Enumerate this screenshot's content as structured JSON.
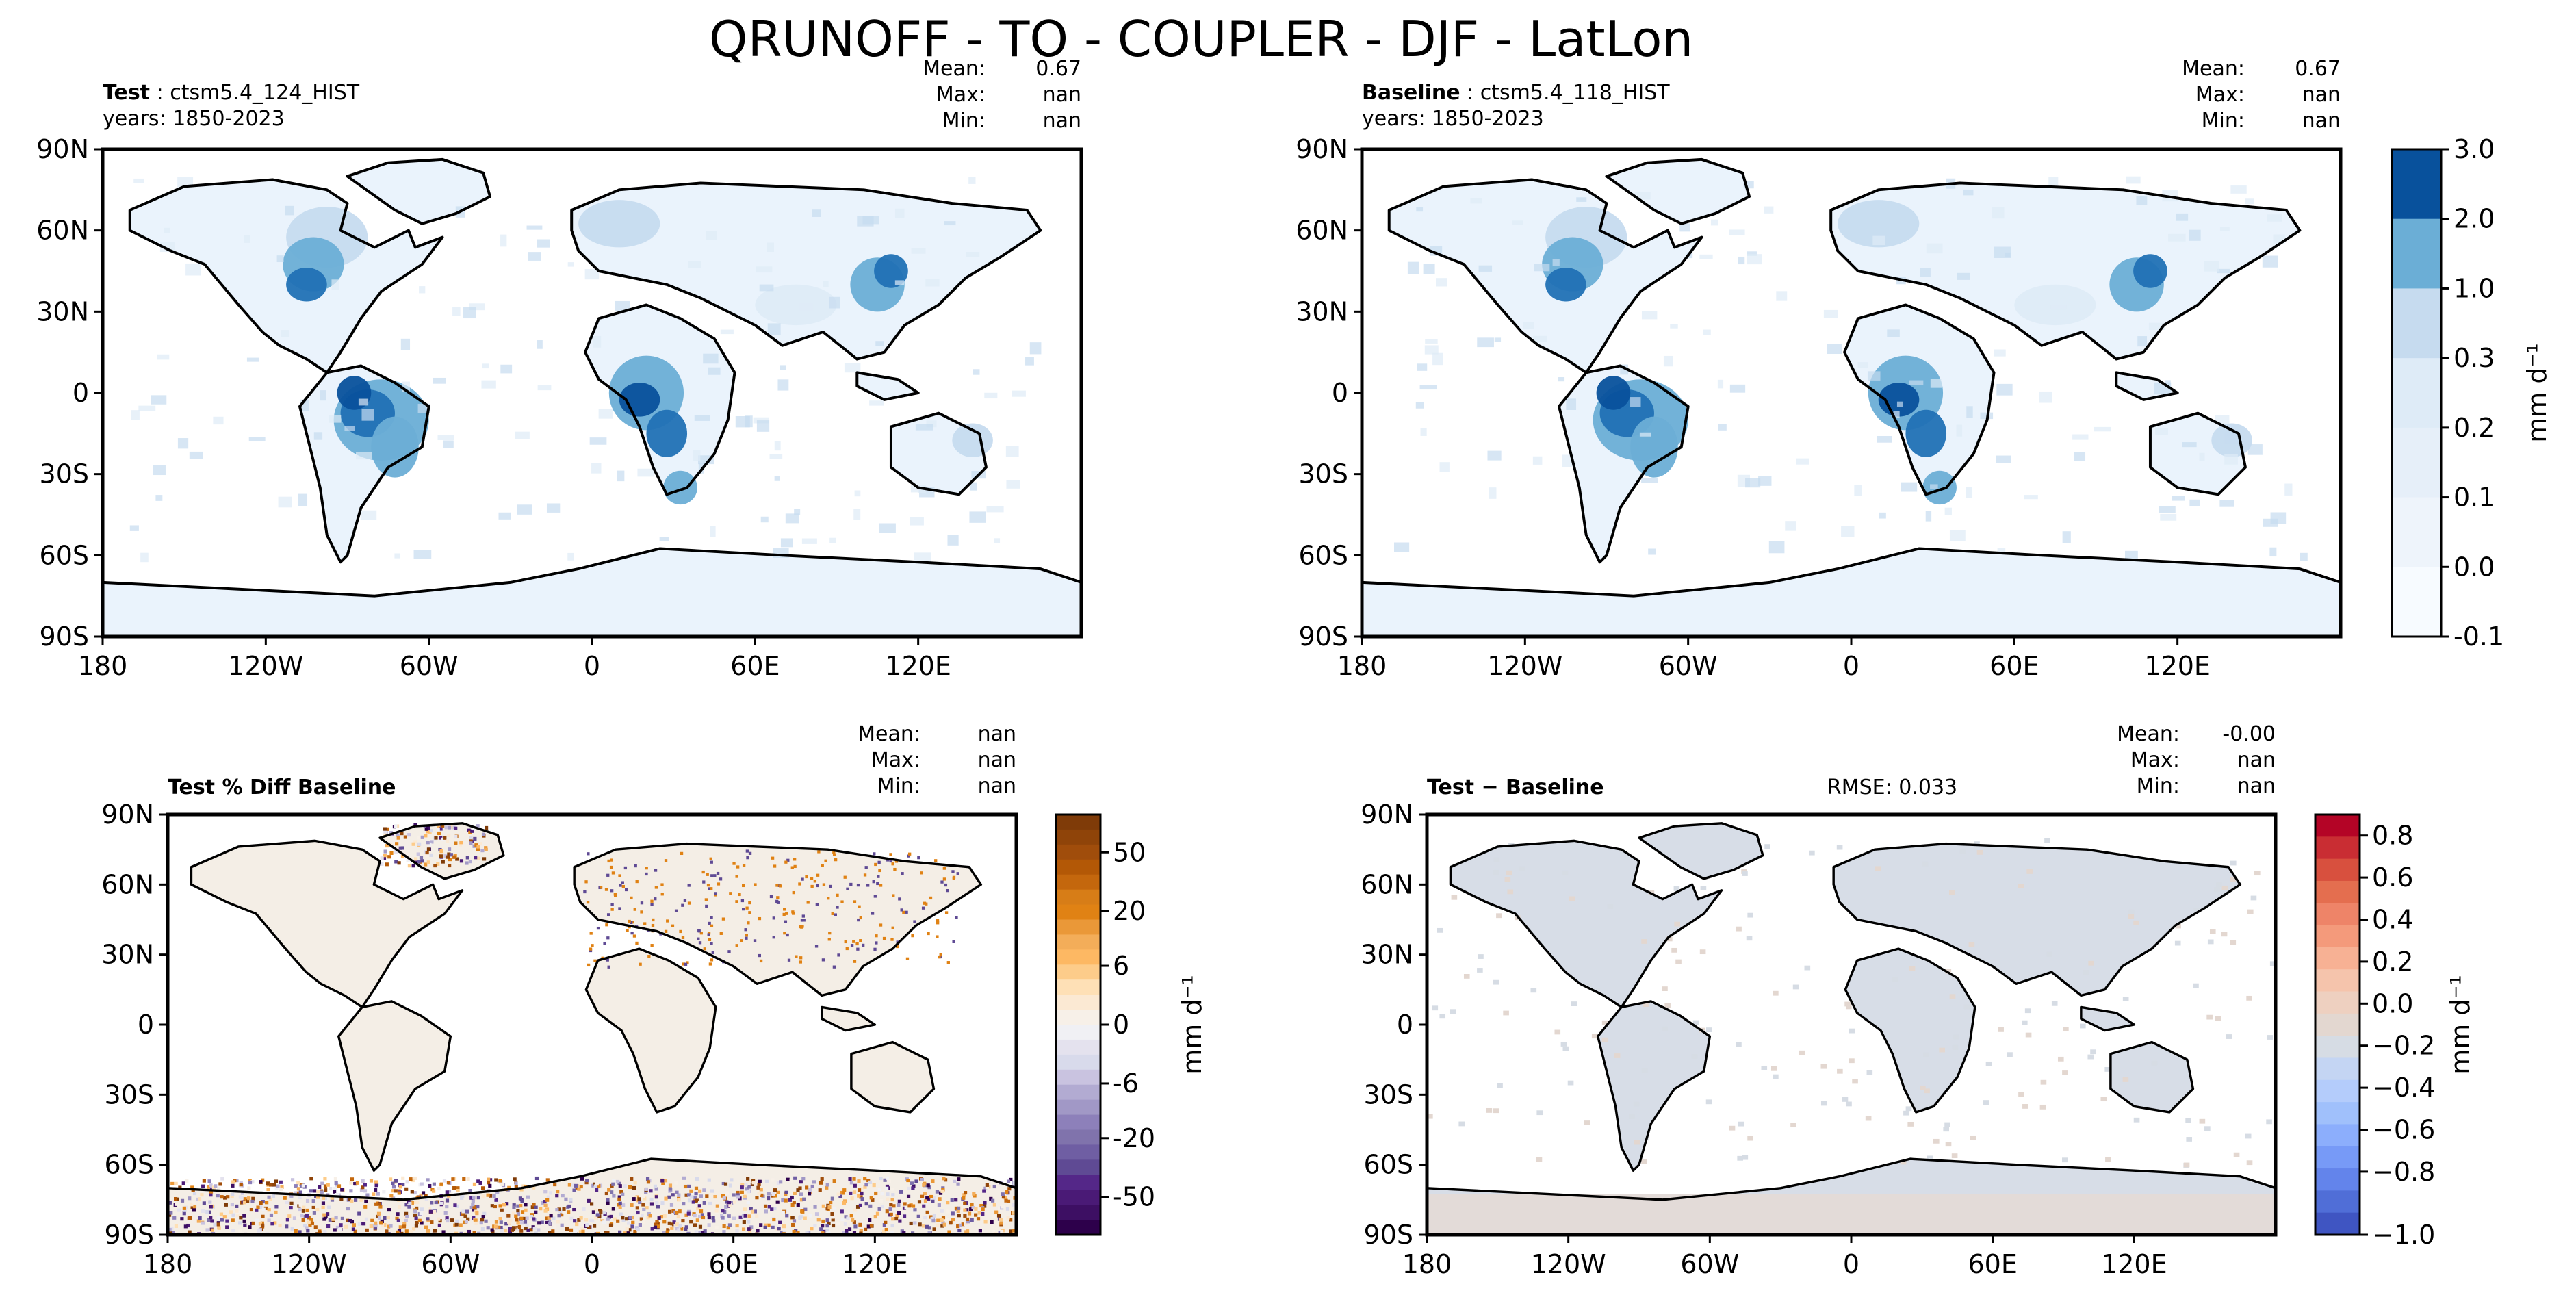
{
  "figure": {
    "title": "QRUNOFF - TO - COUPLER - DJF - LatLon"
  },
  "palettes": {
    "blues": [
      "#f7fbff",
      "#eaf3fc",
      "#deebf7",
      "#c6dbef",
      "#6baed6",
      "#2171b5",
      "#08519c"
    ],
    "diffblues": {
      "land": "#d7dde7",
      "ocean_south": "#e3dbd8"
    },
    "puor_land": "#f4eee6"
  },
  "chart_data": [
    {
      "id": "test",
      "type": "heatmap",
      "label_bold": "Test",
      "label_sep": ":",
      "label_rest": "ctsm5.4_124_HIST",
      "years": "years: 1850-2023",
      "stats": {
        "mean_label": "Mean:",
        "mean": "0.67",
        "max_label": "Max:",
        "max": "nan",
        "min_label": "Min:",
        "min": "nan"
      },
      "x_ticks": [
        "180",
        "120W",
        "60W",
        "0",
        "60E",
        "120E"
      ],
      "y_ticks": [
        "90N",
        "60N",
        "30N",
        "0",
        "30S",
        "60S",
        "90S"
      ],
      "xlim": [
        -180,
        180
      ],
      "ylim": [
        -90,
        90
      ]
    },
    {
      "id": "baseline",
      "type": "heatmap",
      "label_bold": "Baseline",
      "label_sep": ":",
      "label_rest": "ctsm5.4_118_HIST",
      "years": "years: 1850-2023",
      "stats": {
        "mean_label": "Mean:",
        "mean": "0.67",
        "max_label": "Max:",
        "max": "nan",
        "min_label": "Min:",
        "min": "nan"
      },
      "x_ticks": [
        "180",
        "120W",
        "60W",
        "0",
        "60E",
        "120E"
      ],
      "y_ticks": [
        "90N",
        "60N",
        "30N",
        "0",
        "30S",
        "60S",
        "90S"
      ],
      "xlim": [
        -180,
        180
      ],
      "ylim": [
        -90,
        90
      ],
      "colorbar": {
        "ticks": [
          "3.0",
          "2.0",
          "1.0",
          "0.3",
          "0.2",
          "0.1",
          "0.0",
          "-0.1"
        ],
        "unit": "mm d⁻¹"
      }
    },
    {
      "id": "pctdiff",
      "type": "heatmap",
      "label_bold": "Test % Diff Baseline",
      "stats": {
        "mean_label": "Mean:",
        "mean": "nan",
        "max_label": "Max:",
        "max": "nan",
        "min_label": "Min:",
        "min": "nan"
      },
      "x_ticks": [
        "180",
        "120W",
        "60W",
        "0",
        "60E",
        "120E"
      ],
      "y_ticks": [
        "90N",
        "60N",
        "30N",
        "0",
        "30S",
        "60S",
        "90S"
      ],
      "xlim": [
        -180,
        180
      ],
      "ylim": [
        -90,
        90
      ],
      "colorbar": {
        "ticks": [
          "50",
          "20",
          "6",
          "0",
          "-6",
          "-20",
          "-50"
        ],
        "unit": "mm d⁻¹",
        "colors": [
          "#7f3b08",
          "#8f4409",
          "#a04d0b",
          "#b35806",
          "#c4670d",
          "#d77d17",
          "#e08214",
          "#ea9838",
          "#f3ad59",
          "#fdb863",
          "#fdcc8a",
          "#fee0b6",
          "#fbe9d3",
          "#f7f0e8",
          "#f0f0f4",
          "#e4e2ee",
          "#d8daeb",
          "#c9c3e0",
          "#b2abd2",
          "#a198c6",
          "#8d80ba",
          "#8073ac",
          "#6f5ea3",
          "#5f4a94",
          "#542788",
          "#4a1a76",
          "#3d0f63",
          "#2d004b"
        ]
      }
    },
    {
      "id": "diff",
      "type": "heatmap",
      "label_bold": "Test − Baseline",
      "rmse": "RMSE: 0.033",
      "stats": {
        "mean_label": "Mean:",
        "mean": "-0.00",
        "max_label": "Max:",
        "max": "nan",
        "min_label": "Min:",
        "min": "nan"
      },
      "x_ticks": [
        "180",
        "120W",
        "60W",
        "0",
        "60E",
        "120E"
      ],
      "y_ticks": [
        "90N",
        "60N",
        "30N",
        "0",
        "30S",
        "60S",
        "90S"
      ],
      "xlim": [
        -180,
        180
      ],
      "ylim": [
        -90,
        90
      ],
      "colorbar": {
        "ticks": [
          "0.8",
          "0.6",
          "0.4",
          "0.2",
          "0.0",
          "−0.2",
          "−0.4",
          "−0.6",
          "−0.8",
          "−1.0"
        ],
        "unit": "mm d⁻¹",
        "colors": [
          "#b40426",
          "#c92d33",
          "#d8503e",
          "#e46e4f",
          "#ee8468",
          "#f49a7b",
          "#f7b194",
          "#f5c4ac",
          "#eed0c0",
          "#e3d7d0",
          "#d6dce4",
          "#c4d5f3",
          "#b4ccfb",
          "#a0c0fb",
          "#8caefc",
          "#779af7",
          "#6384eb",
          "#506ed7",
          "#3f55c2"
        ]
      }
    }
  ]
}
